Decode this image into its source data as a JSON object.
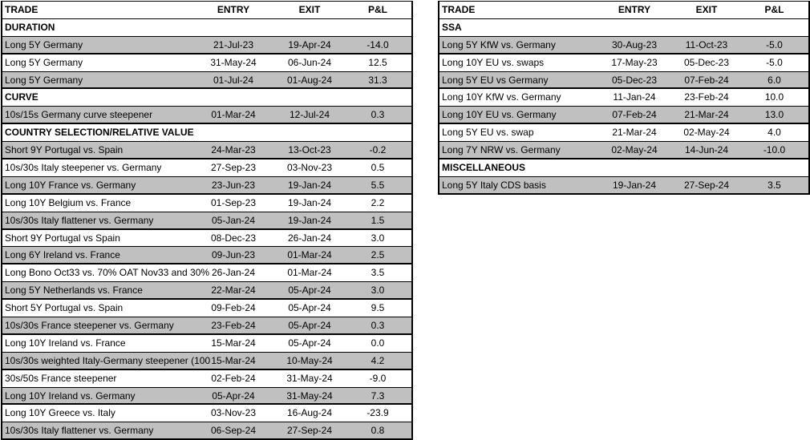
{
  "headers": {
    "trade": "TRADE",
    "entry": "ENTRY",
    "exit": "EXIT",
    "pnl": "P&L"
  },
  "colors": {
    "shaded_row": "#c0c0c0",
    "border": "#000000"
  },
  "left_table": [
    {
      "section": "DURATION"
    },
    {
      "trade": "Long 5Y Germany",
      "entry": "21-Jul-23",
      "exit": "19-Apr-24",
      "pnl": "-14.0",
      "shaded": true
    },
    {
      "trade": "Long 5Y Germany",
      "entry": "31-May-24",
      "exit": "06-Jun-24",
      "pnl": "12.5",
      "shaded": false
    },
    {
      "trade": "Long 5Y Germany",
      "entry": "01-Jul-24",
      "exit": "01-Aug-24",
      "pnl": "31.3",
      "shaded": true
    },
    {
      "section": "CURVE"
    },
    {
      "trade": "10s/15s Germany curve steepener",
      "entry": "01-Mar-24",
      "exit": "12-Jul-24",
      "pnl": "0.3",
      "shaded": true
    },
    {
      "section": "COUNTRY SELECTION/RELATIVE VALUE"
    },
    {
      "trade": "Short 9Y Portugal vs. Spain",
      "entry": "24-Mar-23",
      "exit": "13-Oct-23",
      "pnl": "-0.2",
      "shaded": true
    },
    {
      "trade": "10s/30s Italy steepener vs. Germany",
      "entry": "27-Sep-23",
      "exit": "03-Nov-23",
      "pnl": "0.5",
      "shaded": false
    },
    {
      "trade": "Long 10Y France vs. Germany",
      "entry": "23-Jun-23",
      "exit": "19-Jan-24",
      "pnl": "5.5",
      "shaded": true
    },
    {
      "trade": "Long 10Y Belgium vs. France",
      "entry": "01-Sep-23",
      "exit": "19-Jan-24",
      "pnl": "2.2",
      "shaded": false
    },
    {
      "trade": "10s/30s Italy flattener vs. Germany",
      "entry": "05-Jan-24",
      "exit": "19-Jan-24",
      "pnl": "1.5",
      "shaded": true
    },
    {
      "trade": "Short 9Y Portugal vs Spain",
      "entry": "08-Dec-23",
      "exit": "26-Jan-24",
      "pnl": "3.0",
      "shaded": false
    },
    {
      "trade": "Long 6Y Ireland vs. France",
      "entry": "09-Jun-23",
      "exit": "01-Mar-24",
      "pnl": "2.5",
      "shaded": true
    },
    {
      "trade": "Long Bono Oct33 vs. 70% OAT Nov33 and 30%",
      "entry": "26-Jan-24",
      "exit": "01-Mar-24",
      "pnl": "3.5",
      "shaded": false
    },
    {
      "trade": "Long 5Y Netherlands vs. France",
      "entry": "22-Mar-24",
      "exit": "05-Apr-24",
      "pnl": "3.0",
      "shaded": true
    },
    {
      "trade": "Short 5Y Portugal vs. Spain",
      "entry": "09-Feb-24",
      "exit": "05-Apr-24",
      "pnl": "9.5",
      "shaded": false
    },
    {
      "trade": "10s/30s France steepener vs. Germany",
      "entry": "23-Feb-24",
      "exit": "05-Apr-24",
      "pnl": "0.3",
      "shaded": true
    },
    {
      "trade": "Long 10Y Ireland vs. France",
      "entry": "15-Mar-24",
      "exit": "05-Apr-24",
      "pnl": "0.0",
      "shaded": false
    },
    {
      "trade": "10s/30s weighted Italy-Germany steepener (100",
      "entry": "15-Mar-24",
      "exit": "10-May-24",
      "pnl": "4.2",
      "shaded": true
    },
    {
      "trade": "30s/50s France steepener",
      "entry": "02-Feb-24",
      "exit": "31-May-24",
      "pnl": "-9.0",
      "shaded": false
    },
    {
      "trade": "Long 10Y Ireland vs. Germany",
      "entry": "05-Apr-24",
      "exit": "31-May-24",
      "pnl": "7.3",
      "shaded": true
    },
    {
      "trade": "Long 10Y Greece vs. Italy",
      "entry": "03-Nov-23",
      "exit": "16-Aug-24",
      "pnl": "-23.9",
      "shaded": false
    },
    {
      "trade": "10s/30s Italy flattener vs. Germany",
      "entry": "06-Sep-24",
      "exit": "27-Sep-24",
      "pnl": "0.8",
      "shaded": true
    }
  ],
  "right_table": [
    {
      "section": "SSA"
    },
    {
      "trade": "Long 5Y KfW vs. Germany",
      "entry": "30-Aug-23",
      "exit": "11-Oct-23",
      "pnl": "-5.0",
      "shaded": true
    },
    {
      "trade": "Long 10Y EU vs. swaps",
      "entry": "17-May-23",
      "exit": "05-Dec-23",
      "pnl": "-5.0",
      "shaded": false
    },
    {
      "trade": "Long 5Y EU vs Germany",
      "entry": "05-Dec-23",
      "exit": "07-Feb-24",
      "pnl": "6.0",
      "shaded": true
    },
    {
      "trade": "Long 10Y KfW vs. Germany",
      "entry": "11-Jan-24",
      "exit": "23-Feb-24",
      "pnl": "10.0",
      "shaded": false
    },
    {
      "trade": "Long 10Y EU vs. Germany",
      "entry": "07-Feb-24",
      "exit": "21-Mar-24",
      "pnl": "13.0",
      "shaded": true
    },
    {
      "trade": "Long 5Y EU vs. swap",
      "entry": "21-Mar-24",
      "exit": "02-May-24",
      "pnl": "4.0",
      "shaded": false
    },
    {
      "trade": "Long 7Y NRW vs. Germany",
      "entry": "02-May-24",
      "exit": "14-Jun-24",
      "pnl": "-10.0",
      "shaded": true
    },
    {
      "section": "MISCELLANEOUS"
    },
    {
      "trade": "Long 5Y Italy CDS basis",
      "entry": "19-Jan-24",
      "exit": "27-Sep-24",
      "pnl": "3.5",
      "shaded": true
    }
  ]
}
